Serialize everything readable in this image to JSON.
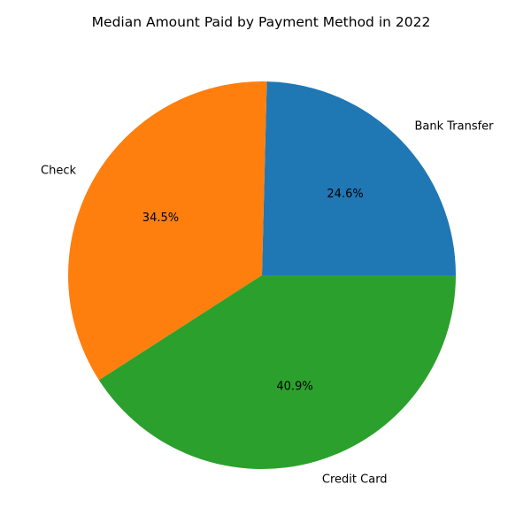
{
  "chart_data": {
    "type": "pie",
    "title": "Median Amount Paid by Payment Method in 2022",
    "slices": [
      {
        "label": "Bank Transfer",
        "percent": 24.6,
        "percent_label": "24.6%",
        "color": "#1f77b4"
      },
      {
        "label": "Check",
        "percent": 34.5,
        "percent_label": "34.5%",
        "color": "#ff7f0e"
      },
      {
        "label": "Credit Card",
        "percent": 40.9,
        "percent_label": "40.9%",
        "color": "#2ca02c"
      }
    ],
    "start_angle_deg": 0,
    "direction": "counterclockwise",
    "legend": "none"
  }
}
